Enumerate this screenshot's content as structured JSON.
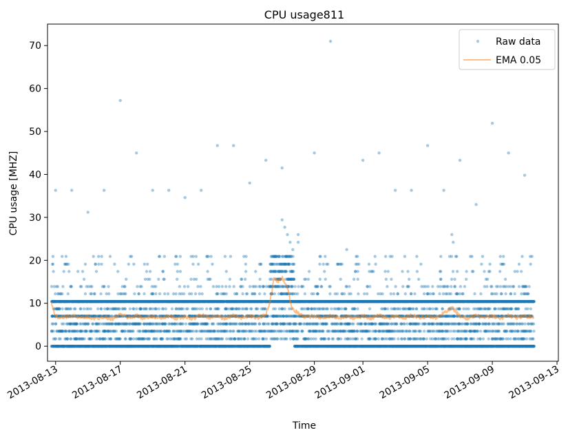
{
  "chart_data": {
    "type": "scatter",
    "title": "CPU usage811",
    "xlabel": "Time",
    "ylabel": "CPU usage [MHZ]",
    "x_range": [
      "2013-08-12T12:00",
      "2013-09-13T02:00"
    ],
    "ylim": [
      -3.5,
      75
    ],
    "yticks": [
      0,
      10,
      20,
      30,
      40,
      50,
      60,
      70
    ],
    "xticks": [
      "2013-08-13",
      "2013-08-17",
      "2013-08-21",
      "2013-08-25",
      "2013-08-29",
      "2013-09-01",
      "2013-09-05",
      "2013-09-09",
      "2013-09-13"
    ],
    "data_start": "2013-08-12T18:00",
    "data_end": "2013-09-11T14:00",
    "grid": false,
    "legend": "top-right",
    "colors": {
      "raw": "#1f77b4",
      "ema": "#ff7f0e"
    },
    "bands": [
      0,
      1.7,
      3.5,
      5.2,
      7.0,
      8.7,
      10.4,
      12.2,
      13.9,
      15.6,
      17.4,
      19.1,
      20.9
    ],
    "series": [
      {
        "name": "Raw data",
        "kind": "points",
        "outliers": [
          [
            "2013-08-13T00:00",
            36.3
          ],
          [
            "2013-08-14T00:00",
            36.3
          ],
          [
            "2013-08-15T00:00",
            31.2
          ],
          [
            "2013-08-16T00:00",
            36.3
          ],
          [
            "2013-08-17T00:00",
            57.2
          ],
          [
            "2013-08-18T00:00",
            45.0
          ],
          [
            "2013-08-19T00:00",
            36.3
          ],
          [
            "2013-08-20T00:00",
            36.3
          ],
          [
            "2013-08-21T00:00",
            34.6
          ],
          [
            "2013-08-22T00:00",
            36.3
          ],
          [
            "2013-08-23T00:00",
            46.7
          ],
          [
            "2013-08-24T00:00",
            46.7
          ],
          [
            "2013-08-25T00:00",
            38.0
          ],
          [
            "2013-08-26T00:00",
            43.3
          ],
          [
            "2013-08-27T00:00",
            41.5
          ],
          [
            "2013-08-28T00:00",
            26.0
          ],
          [
            "2013-08-29T00:00",
            45.0
          ],
          [
            "2013-08-30T00:00",
            71.0
          ],
          [
            "2013-08-31T00:00",
            22.5
          ],
          [
            "2013-09-01T00:00",
            43.3
          ],
          [
            "2013-09-02T00:00",
            45.0
          ],
          [
            "2013-09-03T00:00",
            36.3
          ],
          [
            "2013-09-04T00:00",
            36.3
          ],
          [
            "2013-09-05T00:00",
            46.7
          ],
          [
            "2013-09-06T00:00",
            36.3
          ],
          [
            "2013-09-06T12:00",
            26.0
          ],
          [
            "2013-09-06T14:00",
            24.2
          ],
          [
            "2013-09-07T00:00",
            43.3
          ],
          [
            "2013-09-08T00:00",
            33.0
          ],
          [
            "2013-09-09T00:00",
            51.9
          ],
          [
            "2013-09-10T00:00",
            45.0
          ],
          [
            "2013-09-11T00:00",
            39.8
          ],
          [
            "2013-08-27T00:00",
            29.4
          ],
          [
            "2013-08-27T04:00",
            27.7
          ],
          [
            "2013-08-27T08:00",
            26.0
          ],
          [
            "2013-08-27T12:00",
            24.2
          ],
          [
            "2013-08-27T16:00",
            22.5
          ],
          [
            "2013-08-28T00:00",
            24.2
          ]
        ]
      },
      {
        "name": "EMA 0.05",
        "kind": "line",
        "points": [
          [
            "2013-08-12T18:00",
            10.3
          ],
          [
            "2013-08-12T20:00",
            8.4
          ],
          [
            "2013-08-13T00:00",
            7.0
          ],
          [
            "2013-08-13T12:00",
            6.6
          ],
          [
            "2013-08-14T00:00",
            7.2
          ],
          [
            "2013-08-14T12:00",
            6.5
          ],
          [
            "2013-08-15T00:00",
            6.8
          ],
          [
            "2013-08-15T12:00",
            6.4
          ],
          [
            "2013-08-16T00:00",
            6.9
          ],
          [
            "2013-08-16T12:00",
            6.3
          ],
          [
            "2013-08-17T00:00",
            7.4
          ],
          [
            "2013-08-17T12:00",
            6.6
          ],
          [
            "2013-08-18T00:00",
            7.1
          ],
          [
            "2013-08-18T12:00",
            6.5
          ],
          [
            "2013-08-19T00:00",
            6.9
          ],
          [
            "2013-08-19T12:00",
            6.4
          ],
          [
            "2013-08-20T00:00",
            7.0
          ],
          [
            "2013-08-20T12:00",
            6.5
          ],
          [
            "2013-08-21T00:00",
            6.8
          ],
          [
            "2013-08-21T12:00",
            6.4
          ],
          [
            "2013-08-22T00:00",
            7.3
          ],
          [
            "2013-08-22T12:00",
            6.6
          ],
          [
            "2013-08-23T00:00",
            7.0
          ],
          [
            "2013-08-23T12:00",
            6.4
          ],
          [
            "2013-08-24T00:00",
            7.2
          ],
          [
            "2013-08-24T12:00",
            6.6
          ],
          [
            "2013-08-25T00:00",
            7.0
          ],
          [
            "2013-08-25T12:00",
            6.6
          ],
          [
            "2013-08-26T00:00",
            7.4
          ],
          [
            "2013-08-26T06:00",
            10.0
          ],
          [
            "2013-08-26T12:00",
            15.8
          ],
          [
            "2013-08-26T18:00",
            15.0
          ],
          [
            "2013-08-27T00:00",
            16.0
          ],
          [
            "2013-08-27T08:00",
            13.5
          ],
          [
            "2013-08-27T14:00",
            9.0
          ],
          [
            "2013-08-28T00:00",
            7.6
          ],
          [
            "2013-08-28T12:00",
            6.8
          ],
          [
            "2013-08-29T00:00",
            7.0
          ],
          [
            "2013-08-29T12:00",
            6.5
          ],
          [
            "2013-08-30T00:00",
            7.1
          ],
          [
            "2013-08-30T12:00",
            6.6
          ],
          [
            "2013-08-31T00:00",
            7.0
          ],
          [
            "2013-08-31T12:00",
            6.4
          ],
          [
            "2013-09-01T00:00",
            7.1
          ],
          [
            "2013-09-01T12:00",
            6.5
          ],
          [
            "2013-09-02T00:00",
            7.2
          ],
          [
            "2013-09-02T12:00",
            6.6
          ],
          [
            "2013-09-03T00:00",
            7.0
          ],
          [
            "2013-09-03T12:00",
            6.5
          ],
          [
            "2013-09-04T00:00",
            7.2
          ],
          [
            "2013-09-04T12:00",
            6.6
          ],
          [
            "2013-09-05T00:00",
            7.0
          ],
          [
            "2013-09-05T12:00",
            6.6
          ],
          [
            "2013-09-06T00:00",
            7.7
          ],
          [
            "2013-09-06T12:00",
            9.0
          ],
          [
            "2013-09-07T00:00",
            7.0
          ],
          [
            "2013-09-07T12:00",
            6.5
          ],
          [
            "2013-09-08T00:00",
            7.1
          ],
          [
            "2013-09-08T12:00",
            6.6
          ],
          [
            "2013-09-09T00:00",
            7.0
          ],
          [
            "2013-09-09T12:00",
            6.5
          ],
          [
            "2013-09-10T00:00",
            7.2
          ],
          [
            "2013-09-10T12:00",
            6.6
          ],
          [
            "2013-09-11T00:00",
            7.0
          ],
          [
            "2013-09-11T14:00",
            6.8
          ]
        ]
      }
    ]
  }
}
